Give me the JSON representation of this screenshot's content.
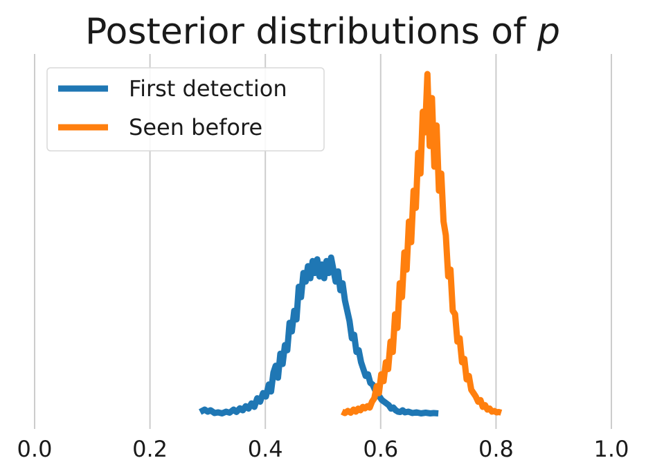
{
  "chart_data": {
    "type": "line",
    "title": "Posterior distributions of p",
    "title_prefix": "Posterior distributions of ",
    "title_var": "p",
    "xlabel": "",
    "ylabel": "",
    "xlim": [
      0.0,
      1.0
    ],
    "ylim": [
      0,
      1.0
    ],
    "xticks": [
      "0.0",
      "0.2",
      "0.4",
      "0.6",
      "0.8",
      "1.0"
    ],
    "grid": "x",
    "legend": {
      "position": "top-left"
    },
    "series": [
      {
        "name": "First detection",
        "color": "#1f77b4",
        "points": [
          [
            0.287,
            0.005
          ],
          [
            0.295,
            0.012
          ],
          [
            0.3,
            0.006
          ],
          [
            0.305,
            0.01
          ],
          [
            0.312,
            0.002
          ],
          [
            0.318,
            0.004
          ],
          [
            0.325,
            0.001
          ],
          [
            0.332,
            0.006
          ],
          [
            0.338,
            0.003
          ],
          [
            0.345,
            0.012
          ],
          [
            0.35,
            0.005
          ],
          [
            0.356,
            0.016
          ],
          [
            0.361,
            0.01
          ],
          [
            0.366,
            0.022
          ],
          [
            0.371,
            0.015
          ],
          [
            0.376,
            0.03
          ],
          [
            0.381,
            0.02
          ],
          [
            0.386,
            0.045
          ],
          [
            0.391,
            0.035
          ],
          [
            0.396,
            0.06
          ],
          [
            0.401,
            0.05
          ],
          [
            0.406,
            0.085
          ],
          [
            0.41,
            0.065
          ],
          [
            0.414,
            0.12
          ],
          [
            0.418,
            0.14
          ],
          [
            0.422,
            0.105
          ],
          [
            0.426,
            0.175
          ],
          [
            0.43,
            0.145
          ],
          [
            0.434,
            0.2
          ],
          [
            0.438,
            0.185
          ],
          [
            0.442,
            0.265
          ],
          [
            0.446,
            0.24
          ],
          [
            0.45,
            0.3
          ],
          [
            0.454,
            0.275
          ],
          [
            0.458,
            0.37
          ],
          [
            0.462,
            0.34
          ],
          [
            0.466,
            0.41
          ],
          [
            0.47,
            0.385
          ],
          [
            0.474,
            0.43
          ],
          [
            0.478,
            0.395
          ],
          [
            0.482,
            0.445
          ],
          [
            0.486,
            0.41
          ],
          [
            0.49,
            0.45
          ],
          [
            0.494,
            0.4
          ],
          [
            0.498,
            0.435
          ],
          [
            0.502,
            0.395
          ],
          [
            0.506,
            0.445
          ],
          [
            0.51,
            0.41
          ],
          [
            0.514,
            0.455
          ],
          [
            0.518,
            0.42
          ],
          [
            0.522,
            0.385
          ],
          [
            0.526,
            0.415
          ],
          [
            0.53,
            0.36
          ],
          [
            0.534,
            0.38
          ],
          [
            0.538,
            0.33
          ],
          [
            0.542,
            0.3
          ],
          [
            0.546,
            0.27
          ],
          [
            0.55,
            0.22
          ],
          [
            0.554,
            0.23
          ],
          [
            0.558,
            0.18
          ],
          [
            0.562,
            0.185
          ],
          [
            0.566,
            0.15
          ],
          [
            0.57,
            0.13
          ],
          [
            0.574,
            0.11
          ],
          [
            0.578,
            0.115
          ],
          [
            0.582,
            0.09
          ],
          [
            0.586,
            0.085
          ],
          [
            0.59,
            0.07
          ],
          [
            0.594,
            0.06
          ],
          [
            0.598,
            0.05
          ],
          [
            0.602,
            0.04
          ],
          [
            0.606,
            0.035
          ],
          [
            0.61,
            0.03
          ],
          [
            0.614,
            0.025
          ],
          [
            0.618,
            0.015
          ],
          [
            0.622,
            0.018
          ],
          [
            0.626,
            0.01
          ],
          [
            0.63,
            0.006
          ],
          [
            0.634,
            0.005
          ],
          [
            0.638,
            0.01
          ],
          [
            0.642,
            0.004
          ],
          [
            0.648,
            0.006
          ],
          [
            0.655,
            0.002
          ],
          [
            0.662,
            0.004
          ],
          [
            0.67,
            0.001
          ],
          [
            0.678,
            0.003
          ],
          [
            0.686,
            0.001
          ],
          [
            0.692,
            0.002
          ],
          [
            0.7,
            0.001
          ]
        ]
      },
      {
        "name": "Seen before",
        "color": "#ff7f0e",
        "points": [
          [
            0.533,
            0.006
          ],
          [
            0.538,
            0.002
          ],
          [
            0.543,
            0.008
          ],
          [
            0.548,
            0.003
          ],
          [
            0.553,
            0.012
          ],
          [
            0.557,
            0.006
          ],
          [
            0.561,
            0.015
          ],
          [
            0.565,
            0.01
          ],
          [
            0.569,
            0.02
          ],
          [
            0.573,
            0.016
          ],
          [
            0.577,
            0.022
          ],
          [
            0.581,
            0.018
          ],
          [
            0.585,
            0.035
          ],
          [
            0.589,
            0.045
          ],
          [
            0.593,
            0.08
          ],
          [
            0.597,
            0.06
          ],
          [
            0.601,
            0.115
          ],
          [
            0.605,
            0.095
          ],
          [
            0.609,
            0.15
          ],
          [
            0.613,
            0.13
          ],
          [
            0.617,
            0.21
          ],
          [
            0.621,
            0.18
          ],
          [
            0.625,
            0.29
          ],
          [
            0.629,
            0.25
          ],
          [
            0.633,
            0.38
          ],
          [
            0.637,
            0.34
          ],
          [
            0.641,
            0.47
          ],
          [
            0.645,
            0.42
          ],
          [
            0.649,
            0.56
          ],
          [
            0.653,
            0.5
          ],
          [
            0.657,
            0.65
          ],
          [
            0.661,
            0.6
          ],
          [
            0.665,
            0.76
          ],
          [
            0.669,
            0.7
          ],
          [
            0.673,
            0.88
          ],
          [
            0.677,
            0.82
          ],
          [
            0.681,
            0.99
          ],
          [
            0.685,
            0.78
          ],
          [
            0.689,
            0.92
          ],
          [
            0.693,
            0.72
          ],
          [
            0.697,
            0.84
          ],
          [
            0.701,
            0.65
          ],
          [
            0.705,
            0.7
          ],
          [
            0.709,
            0.56
          ],
          [
            0.713,
            0.52
          ],
          [
            0.717,
            0.4
          ],
          [
            0.721,
            0.42
          ],
          [
            0.725,
            0.3
          ],
          [
            0.729,
            0.29
          ],
          [
            0.733,
            0.21
          ],
          [
            0.737,
            0.22
          ],
          [
            0.741,
            0.15
          ],
          [
            0.745,
            0.16
          ],
          [
            0.749,
            0.1
          ],
          [
            0.753,
            0.11
          ],
          [
            0.757,
            0.07
          ],
          [
            0.761,
            0.06
          ],
          [
            0.765,
            0.05
          ],
          [
            0.769,
            0.035
          ],
          [
            0.773,
            0.04
          ],
          [
            0.777,
            0.02
          ],
          [
            0.781,
            0.025
          ],
          [
            0.785,
            0.012
          ],
          [
            0.789,
            0.015
          ],
          [
            0.793,
            0.006
          ],
          [
            0.797,
            0.008
          ],
          [
            0.801,
            0.004
          ],
          [
            0.805,
            0.005
          ],
          [
            0.809,
            0.003
          ]
        ]
      }
    ]
  }
}
